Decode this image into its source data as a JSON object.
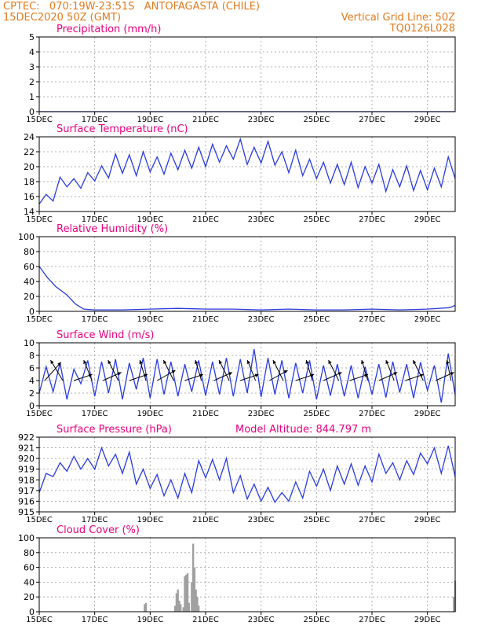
{
  "header": {
    "line1": "CPTEC:   070:19W-23:51S   ANTOFAGASTA (CHILE)",
    "line2": "15DEC2020 50Z (GMT)",
    "grid_note": "Vertical Grid Line: 50Z",
    "code": "TQ0126L028"
  },
  "colors": {
    "header": "#e07a1e",
    "title": "#e8007f",
    "line": "#2a3be0",
    "arrow": "#000000",
    "bar": "#a0a0a0",
    "grid": "#999999"
  },
  "chart_data": [
    {
      "type": "line",
      "title": "Precipitation (mm/h)",
      "ylim": [
        0,
        5
      ],
      "yticks": [
        0,
        1,
        2,
        3,
        4,
        5
      ],
      "x_ticks": [
        "15DEC",
        "17DEC",
        "19DEC",
        "21DEC",
        "23DEC",
        "25DEC",
        "27DEC",
        "29DEC"
      ],
      "x_unit": "days from 15DEC 00Z",
      "series": [
        {
          "x": [
            0,
            15
          ],
          "y": [
            0,
            0
          ]
        }
      ]
    },
    {
      "type": "line",
      "title": "Surface Temperature (nC)",
      "ylim": [
        14,
        24
      ],
      "yticks": [
        14,
        16,
        18,
        20,
        22,
        24
      ],
      "x_ticks": [
        "15DEC",
        "17DEC",
        "19DEC",
        "21DEC",
        "23DEC",
        "25DEC",
        "27DEC",
        "29DEC"
      ],
      "series": [
        {
          "x": [
            0,
            0.25,
            0.5,
            0.75,
            1,
            1.25,
            1.5,
            1.75,
            2,
            2.25,
            2.5,
            2.75,
            3,
            3.25,
            3.5,
            3.75,
            4,
            4.25,
            4.5,
            4.75,
            5,
            5.25,
            5.5,
            5.75,
            6,
            6.25,
            6.5,
            6.75,
            7,
            7.25,
            7.5,
            7.75,
            8,
            8.25,
            8.5,
            8.75,
            9,
            9.25,
            9.5,
            9.75,
            10,
            10.25,
            10.5,
            10.75,
            11,
            11.25,
            11.5,
            11.75,
            12,
            12.25,
            12.5,
            12.75,
            13,
            13.25,
            13.5,
            13.75,
            14,
            14.25,
            14.5,
            14.75,
            15
          ],
          "y": [
            15.0,
            16.3,
            15.4,
            18.6,
            17.3,
            18.4,
            17.1,
            19.2,
            18.1,
            20.1,
            18.5,
            21.7,
            19.1,
            21.6,
            18.8,
            22.0,
            19.3,
            21.3,
            19.0,
            21.8,
            19.6,
            22.2,
            19.8,
            22.6,
            20.0,
            23.0,
            20.6,
            22.8,
            21.0,
            23.7,
            20.3,
            22.6,
            20.5,
            23.4,
            20.2,
            22.0,
            19.2,
            22.2,
            18.8,
            21.0,
            18.4,
            20.6,
            17.8,
            20.3,
            17.6,
            20.6,
            17.2,
            20.0,
            17.8,
            20.3,
            16.7,
            19.6,
            17.3,
            20.1,
            16.8,
            19.5,
            16.9,
            19.8,
            17.3,
            21.3,
            18.4
          ]
        }
      ]
    },
    {
      "type": "line",
      "title": "Relative Humidity (%)",
      "ylim": [
        0,
        100
      ],
      "yticks": [
        0,
        20,
        40,
        60,
        80,
        100
      ],
      "x_ticks": [
        "15DEC",
        "17DEC",
        "19DEC",
        "21DEC",
        "23DEC",
        "25DEC",
        "27DEC",
        "29DEC"
      ],
      "series": [
        {
          "x": [
            0,
            0.3,
            0.6,
            1.0,
            1.3,
            1.6,
            2.0,
            3,
            4,
            5,
            6,
            7,
            8,
            9,
            10,
            11,
            12,
            13,
            14,
            14.8,
            15
          ],
          "y": [
            60,
            45,
            33,
            22,
            10,
            3,
            2,
            2,
            3,
            4,
            3,
            3,
            2,
            3,
            2,
            2,
            3,
            2,
            3,
            5,
            8
          ]
        }
      ]
    },
    {
      "type": "line",
      "title": "Surface Wind (m/s)",
      "ylim": [
        0,
        10
      ],
      "yticks": [
        0,
        2,
        4,
        6,
        8,
        10
      ],
      "x_ticks": [
        "15DEC",
        "17DEC",
        "19DEC",
        "21DEC",
        "23DEC",
        "25DEC",
        "27DEC",
        "29DEC"
      ],
      "series": [
        {
          "x": [
            0,
            0.25,
            0.5,
            0.75,
            1,
            1.25,
            1.5,
            1.75,
            2,
            2.25,
            2.5,
            2.75,
            3,
            3.25,
            3.5,
            3.75,
            4,
            4.25,
            4.5,
            4.75,
            5,
            5.25,
            5.5,
            5.75,
            6,
            6.25,
            6.5,
            6.75,
            7,
            7.25,
            7.5,
            7.75,
            8,
            8.25,
            8.5,
            8.75,
            9,
            9.25,
            9.5,
            9.75,
            10,
            10.25,
            10.5,
            10.75,
            11,
            11.25,
            11.5,
            11.75,
            12,
            12.25,
            12.5,
            12.75,
            13,
            13.25,
            13.5,
            13.75,
            14,
            14.25,
            14.5,
            14.75,
            15
          ],
          "y": [
            2.0,
            6.2,
            2.2,
            6.8,
            1.0,
            5.8,
            3.5,
            7.2,
            1.5,
            7.0,
            2.0,
            7.4,
            1.0,
            6.8,
            2.6,
            7.6,
            1.2,
            7.4,
            1.8,
            7.0,
            1.5,
            6.6,
            2.2,
            7.2,
            1.6,
            7.0,
            1.8,
            7.6,
            1.5,
            7.4,
            2.0,
            9.0,
            1.4,
            7.6,
            1.8,
            7.2,
            1.2,
            6.8,
            2.0,
            7.2,
            1.0,
            6.4,
            1.6,
            6.6,
            1.5,
            6.4,
            1.2,
            6.2,
            1.8,
            6.6,
            1.3,
            7.0,
            2.1,
            6.6,
            1.2,
            6.9,
            2.4,
            6.4,
            0.5,
            8.3,
            1.7
          ]
        }
      ],
      "vectors": [
        {
          "x": 0.2,
          "u": 0.8,
          "v": 0.9
        },
        {
          "x": 0.85,
          "u": -0.6,
          "v": 1.0
        },
        {
          "x": 1.25,
          "u": 0.9,
          "v": 0.3
        },
        {
          "x": 1.9,
          "u": -0.4,
          "v": 1.0
        },
        {
          "x": 2.3,
          "u": 0.9,
          "v": 0.4
        },
        {
          "x": 2.85,
          "u": -0.5,
          "v": 1.0
        },
        {
          "x": 3.25,
          "u": 0.9,
          "v": 0.3
        },
        {
          "x": 3.85,
          "u": -0.3,
          "v": 1.0
        },
        {
          "x": 4.25,
          "u": 0.9,
          "v": 0.5
        },
        {
          "x": 4.85,
          "u": -0.5,
          "v": 1.0
        },
        {
          "x": 5.25,
          "u": 0.9,
          "v": 0.3
        },
        {
          "x": 5.85,
          "u": -0.3,
          "v": 1.0
        },
        {
          "x": 6.3,
          "u": 0.9,
          "v": 0.4
        },
        {
          "x": 6.85,
          "u": -0.5,
          "v": 1.0
        },
        {
          "x": 7.25,
          "u": 0.9,
          "v": 0.3
        },
        {
          "x": 7.8,
          "u": -0.4,
          "v": 1.0
        },
        {
          "x": 8.3,
          "u": 0.9,
          "v": 0.5
        },
        {
          "x": 8.8,
          "u": -0.5,
          "v": 1.0
        },
        {
          "x": 9.25,
          "u": 0.9,
          "v": 0.3
        },
        {
          "x": 9.85,
          "u": -0.3,
          "v": 1.0
        },
        {
          "x": 10.25,
          "u": 0.9,
          "v": 0.4
        },
        {
          "x": 10.8,
          "u": -0.5,
          "v": 1.0
        },
        {
          "x": 11.2,
          "u": 0.9,
          "v": 0.3
        },
        {
          "x": 11.85,
          "u": -0.3,
          "v": 1.0
        },
        {
          "x": 12.25,
          "u": 0.9,
          "v": 0.4
        },
        {
          "x": 12.8,
          "u": -0.4,
          "v": 1.0
        },
        {
          "x": 13.2,
          "u": 0.9,
          "v": 0.3
        },
        {
          "x": 13.85,
          "u": -0.5,
          "v": 1.0
        },
        {
          "x": 14.3,
          "u": 0.9,
          "v": 0.4
        },
        {
          "x": 14.85,
          "u": -0.2,
          "v": 1.0
        }
      ]
    },
    {
      "type": "line",
      "title": "Surface Pressure (hPa)",
      "note": "Model Altitude: 844.797 m",
      "ylim": [
        915,
        922
      ],
      "yticks": [
        915,
        916,
        917,
        918,
        919,
        920,
        921,
        922
      ],
      "x_ticks": [
        "15DEC",
        "17DEC",
        "19DEC",
        "21DEC",
        "23DEC",
        "25DEC",
        "27DEC",
        "29DEC"
      ],
      "series": [
        {
          "x": [
            0,
            0.25,
            0.5,
            0.75,
            1,
            1.25,
            1.5,
            1.75,
            2,
            2.25,
            2.5,
            2.75,
            3,
            3.25,
            3.5,
            3.75,
            4,
            4.25,
            4.5,
            4.75,
            5,
            5.25,
            5.5,
            5.75,
            6,
            6.25,
            6.5,
            6.75,
            7,
            7.25,
            7.5,
            7.75,
            8,
            8.25,
            8.5,
            8.75,
            9,
            9.25,
            9.5,
            9.75,
            10,
            10.25,
            10.5,
            10.75,
            11,
            11.25,
            11.5,
            11.75,
            12,
            12.25,
            12.5,
            12.75,
            13,
            13.25,
            13.5,
            13.75,
            14,
            14.25,
            14.5,
            14.75,
            15
          ],
          "y": [
            916.8,
            918.6,
            918.3,
            919.6,
            918.8,
            920.2,
            919.0,
            920.0,
            919.0,
            921.0,
            919.3,
            920.4,
            918.6,
            920.6,
            917.6,
            919.0,
            917.2,
            918.5,
            916.5,
            918.0,
            916.3,
            918.6,
            916.8,
            919.8,
            918.2,
            919.9,
            918.0,
            920.0,
            916.8,
            918.4,
            916.2,
            917.6,
            916.0,
            917.3,
            915.9,
            916.8,
            916.0,
            917.8,
            916.3,
            918.8,
            917.4,
            919.0,
            917.0,
            919.3,
            917.6,
            919.5,
            917.5,
            919.3,
            917.8,
            920.4,
            918.6,
            919.6,
            918.0,
            919.8,
            918.5,
            920.5,
            919.5,
            921.0,
            918.6,
            921.2,
            918.3
          ]
        }
      ]
    },
    {
      "type": "bar",
      "title": "Cloud Cover (%)",
      "ylim": [
        0,
        100
      ],
      "yticks": [
        0,
        20,
        40,
        60,
        80,
        100
      ],
      "x_ticks": [
        "15DEC",
        "17DEC",
        "19DEC",
        "21DEC",
        "23DEC",
        "25DEC",
        "27DEC",
        "29DEC"
      ],
      "x": [
        3.8,
        3.85,
        4.9,
        4.95,
        5.0,
        5.05,
        5.1,
        5.2,
        5.25,
        5.3,
        5.35,
        5.4,
        5.5,
        5.55,
        5.6,
        5.65,
        5.7,
        5.75,
        14.95,
        15.0
      ],
      "values": [
        10,
        12,
        8,
        25,
        30,
        15,
        10,
        6,
        48,
        50,
        52,
        12,
        40,
        92,
        60,
        30,
        20,
        8,
        20,
        42
      ]
    }
  ]
}
